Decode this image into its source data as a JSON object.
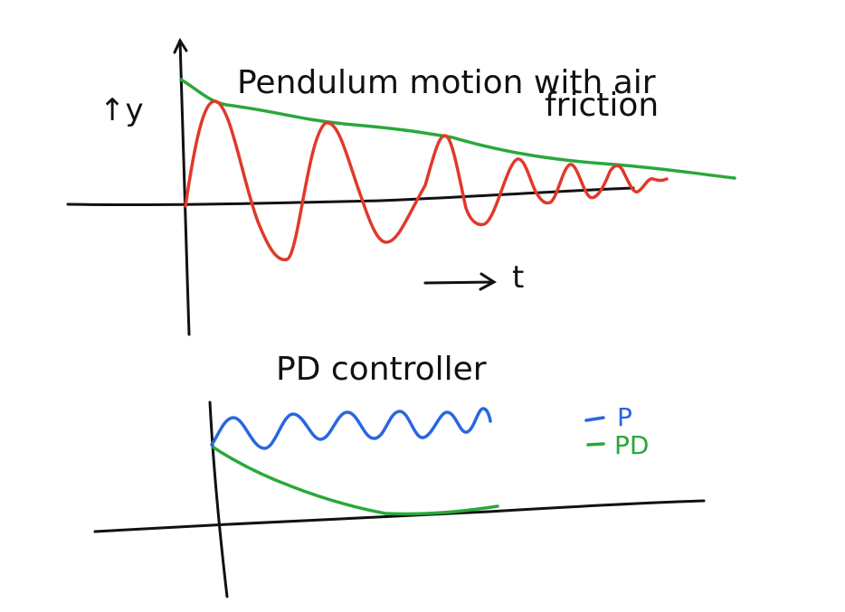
{
  "top_plot": {
    "title_line1": "Pendulum motion with air",
    "title_line2": "friction",
    "y_label": "↑y",
    "x_label": "t"
  },
  "bottom_plot": {
    "title": "PD controller",
    "legend": [
      {
        "label": "P",
        "color": "#2a66e0"
      },
      {
        "label": "PD",
        "color": "#2aa83a"
      }
    ]
  },
  "colors": {
    "ink": "#111111",
    "pendulum": "#e0392b",
    "envelope": "#2aa83a",
    "p_response": "#2a66e0",
    "pd_response": "#2aa83a"
  }
}
